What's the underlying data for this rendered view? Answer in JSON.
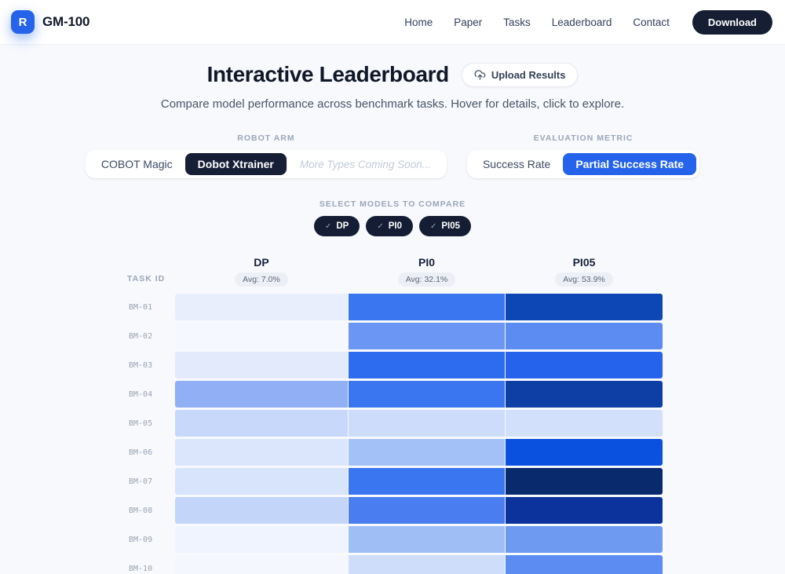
{
  "header": {
    "logo_letter": "R",
    "brand": "GM-100",
    "nav": [
      "Home",
      "Paper",
      "Tasks",
      "Leaderboard",
      "Contact"
    ],
    "download_label": "Download"
  },
  "hero": {
    "title": "Interactive Leaderboard",
    "upload_button_label": "Upload Results",
    "subtitle": "Compare model performance across benchmark tasks. Hover for details, click to explore."
  },
  "controls": {
    "robot_arm": {
      "label": "Robot Arm",
      "options": [
        "COBOT Magic",
        "Dobot Xtrainer",
        "More Types Coming Soon..."
      ],
      "selected": "Dobot Xtrainer"
    },
    "metric": {
      "label": "Evaluation Metric",
      "options": [
        "Success Rate",
        "Partial Success Rate"
      ],
      "selected": "Partial Success Rate"
    },
    "models": {
      "label": "Select Models to Compare",
      "check_glyph": "✓",
      "options": [
        {
          "label": "DP",
          "checked": true
        },
        {
          "label": "PI0",
          "checked": true
        },
        {
          "label": "PI05",
          "checked": true
        }
      ]
    }
  },
  "colors": {
    "accent_blue": "#2563eb",
    "dark_navy": "#151e33",
    "page_bg": "#f7f9fc"
  },
  "chart_data": {
    "type": "heatmap",
    "title": "Interactive Leaderboard",
    "metric": "Partial Success Rate",
    "row_header": "Task ID",
    "rows": [
      "BM-01",
      "BM-02",
      "BM-03",
      "BM-04",
      "BM-05",
      "BM-06",
      "BM-07",
      "BM-08",
      "BM-09",
      "BM-10"
    ],
    "columns": [
      {
        "name": "DP",
        "avg_label": "Avg: 7.0%",
        "avg_value": 7.0
      },
      {
        "name": "PI0",
        "avg_label": "Avg: 32.1%",
        "avg_value": 32.1
      },
      {
        "name": "PI05",
        "avg_label": "Avg: 53.9%",
        "avg_value": 53.9
      }
    ],
    "cell_colors": [
      [
        "#e8eefc",
        "#3b76f1",
        "#0d47b5"
      ],
      [
        "#f5f8fe",
        "#6b96f3",
        "#5c8cf1"
      ],
      [
        "#e2eafb",
        "#2e6cef",
        "#2563ed"
      ],
      [
        "#91aff4",
        "#3b76f1",
        "#0d3fa5"
      ],
      [
        "#c7d8fa",
        "#ccdcfa",
        "#d3e0fb"
      ],
      [
        "#dbe6fc",
        "#a4c1f7",
        "#0b51e0"
      ],
      [
        "#d8e4fb",
        "#3b76f1",
        "#0a2a6e"
      ],
      [
        "#c3d6f9",
        "#4a7df0",
        "#0c339b"
      ],
      [
        "#eff4fe",
        "#a0bef6",
        "#6f9af2"
      ],
      [
        "#f4f8fe",
        "#cdddfa",
        "#5c8cf1"
      ]
    ]
  }
}
